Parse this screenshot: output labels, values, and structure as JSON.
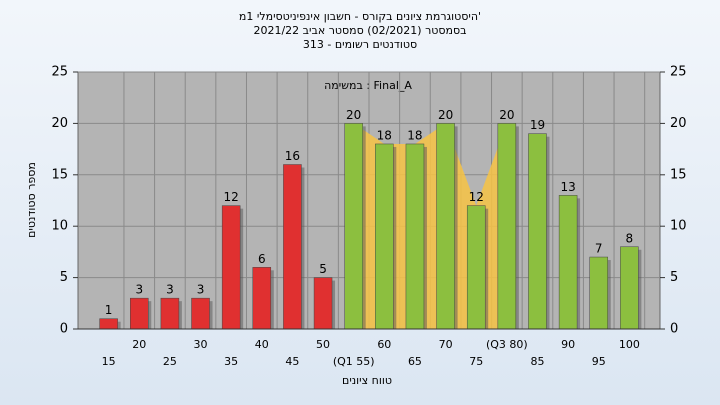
{
  "chart_data": {
    "type": "bar",
    "title": "היסטוגרמת ציונים בקורס - חשבון אינפיניטסימלי 1מ'",
    "subtitle": "בסמסטר (02/2021) סמסטר אביב 2021/22",
    "subtitle2": "סטודנטים רשומים - 313",
    "annotation": "במשימה : Final_A",
    "x_label": "טווח ציונים",
    "y_label": "מספר סטודנטים",
    "categories": [
      "15",
      "20",
      "25",
      "30",
      "35",
      "40",
      "45",
      "50",
      "(Q1 55)",
      "60",
      "65",
      "70",
      "75",
      "(Q3 80)",
      "85",
      "90",
      "95",
      "100"
    ],
    "values": [
      1,
      3,
      3,
      3,
      12,
      6,
      16,
      5,
      20,
      18,
      18,
      20,
      12,
      20,
      19,
      13,
      7,
      8
    ],
    "colors": [
      "#e03030",
      "#e03030",
      "#e03030",
      "#e03030",
      "#e03030",
      "#e03030",
      "#e03030",
      "#e03030",
      "#8cbf3f",
      "#8cbf3f",
      "#8cbf3f",
      "#8cbf3f",
      "#8cbf3f",
      "#8cbf3f",
      "#8cbf3f",
      "#8cbf3f",
      "#8cbf3f",
      "#8cbf3f"
    ],
    "ylim": [
      0,
      25
    ],
    "yticks": [
      0,
      5,
      10,
      15,
      20,
      25
    ],
    "y2lim": [
      0,
      25
    ],
    "y2ticks": [
      0,
      5,
      10,
      15,
      20,
      25
    ],
    "grid": true
  }
}
